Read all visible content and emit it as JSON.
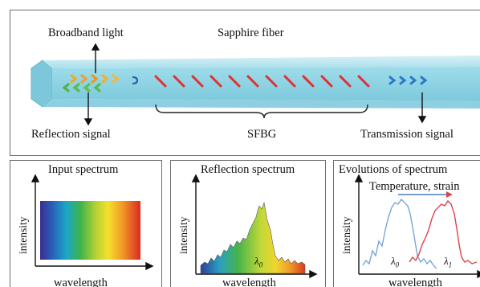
{
  "top": {
    "broadband": "Broadband light",
    "fiber": "Sapphire fiber",
    "reflection": "Reflection signal",
    "sfbg": "SFBG",
    "transmission": "Transmission signal"
  },
  "input_panel": {
    "title": "Input spectrum",
    "ylabel": "intensity",
    "xlabel": "wavelength"
  },
  "reflection_panel": {
    "title": "Reflection spectrum",
    "ylabel": "intensity",
    "xlabel": "wavelength",
    "peak_label": "λ",
    "peak_sub": "0"
  },
  "evolution_panel": {
    "title": "Evolutions of spectrum",
    "shift_label": "Temperature, strain",
    "ylabel": "intensity",
    "xlabel": "wavelength",
    "l0": "λ",
    "l0_sub": "0",
    "l1": "λ",
    "l1_sub": "1",
    "colors": {
      "before": "#7aa7d6",
      "after": "#d9464a",
      "arrow": "#4a7fc0"
    }
  },
  "colors": {
    "fiber_top": "#bfe7f1",
    "fiber_body": "#8fd3e3",
    "grating": "#e0302f",
    "chevron_blue": "#2a78c8"
  }
}
